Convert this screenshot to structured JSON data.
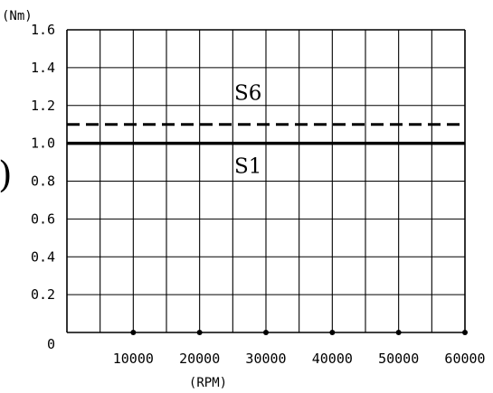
{
  "chart_data": {
    "type": "line",
    "y_unit": "(Nm)",
    "x_unit": "(RPM)",
    "y_ticks": [
      "1.6",
      "1.4",
      "1.2",
      "1.0",
      "0.8",
      "0.6",
      "0.4",
      "0.2",
      "0"
    ],
    "x_ticks": [
      "10000",
      "20000",
      "30000",
      "40000",
      "50000",
      "60000"
    ],
    "xlim": [
      0,
      60000
    ],
    "ylim": [
      0,
      1.6
    ],
    "grid": true,
    "x_dot_markers": [
      10000,
      20000,
      30000,
      40000,
      50000,
      60000
    ],
    "series": [
      {
        "name": "S6",
        "style": "dashed",
        "color": "#000000",
        "x": [
          0,
          60000
        ],
        "y": [
          1.1,
          1.1
        ]
      },
      {
        "name": "S1",
        "style": "solid",
        "color": "#000000",
        "x": [
          0,
          60000
        ],
        "y": [
          1.0,
          1.0
        ]
      }
    ],
    "edge_mark": ")"
  }
}
